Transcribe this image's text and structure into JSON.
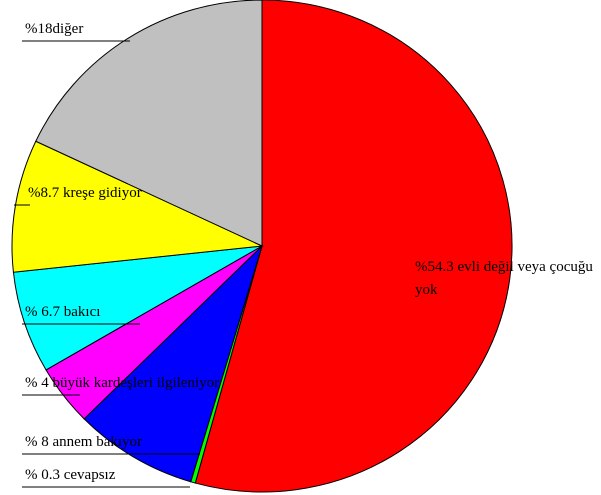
{
  "chart_data": {
    "type": "pie",
    "values": [
      54.3,
      0.3,
      8,
      4,
      6.7,
      8.7,
      18
    ],
    "value_labels": [
      "%54.3 evli değil veya çocuğu  yok",
      "% 0.3 cevapsız",
      "% 8 annem bakıyor",
      "% 4 büyük kardeşleri ilgileniyor",
      "% 6.7 bakıcı",
      "%8.7 kreşe gidiyor",
      "%18diğer"
    ],
    "colors": [
      "#ff0000",
      "#00ff00",
      "#0000ff",
      "#ff00ff",
      "#00ffff",
      "#ffff00",
      "#c0c0c0"
    ]
  }
}
